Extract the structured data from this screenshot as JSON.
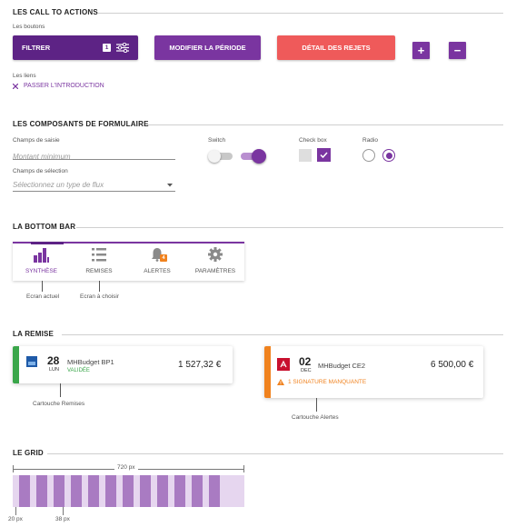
{
  "sections": {
    "cta": "LES CALL TO ACTIONS",
    "form": "LES COMPOSANTS DE FORMULAIRE",
    "bottom_bar": "LA BOTTOM BAR",
    "remise": "LA REMISE",
    "grid": "LE GRID"
  },
  "cta": {
    "buttons_label": "Les boutons",
    "filter_label": "FILTRER",
    "filter_count": "1",
    "modify_label": "MODIFIER LA PÉRIODE",
    "rejects_label": "DÉTAIL DES REJETS",
    "plus_label": "+",
    "minus_label": "−",
    "links_label": "Les liens",
    "skip_link": "PASSER L'INTRODUCTION"
  },
  "form": {
    "input_label": "Champs de saisie",
    "input_placeholder": "Montant minimum",
    "select_label": "Champs de sélection",
    "select_placeholder": "Sélectionnez un type de flux",
    "switch_label": "Switch",
    "checkbox_label": "Check box",
    "radio_label": "Radio"
  },
  "bottom_bar": {
    "items": [
      {
        "label": "SYNTHÈSE",
        "icon": "bar-chart-icon",
        "active": true
      },
      {
        "label": "REMISES",
        "icon": "list-icon",
        "active": false
      },
      {
        "label": "ALERTES",
        "icon": "bell-icon",
        "active": false,
        "badge": "4"
      },
      {
        "label": "PARAMÈTRES",
        "icon": "gear-icon",
        "active": false
      }
    ],
    "annotation_current": "Ecran actuel",
    "annotation_choose": "Ecran à choisir"
  },
  "remise": {
    "card1": {
      "day": "28",
      "month": "LUN",
      "name": "MHBudget BP1",
      "status": "VALIDÉE",
      "amount": "1 527,32 €",
      "accent": "#3aa64a"
    },
    "card2": {
      "day": "02",
      "month": "DEC",
      "name": "MHBudget CE2",
      "warning": "1 SIGNATURE MANQUANTE",
      "amount": "6 500,00 €",
      "accent": "#f0821e"
    },
    "annotation1": "Cartouche Remises",
    "annotation2": "Cartouche Alertes"
  },
  "grid": {
    "total_width": "720 px",
    "margin": "20 px",
    "column": "38 px"
  },
  "colors": {
    "primary": "#7a35a0",
    "primary_dark": "#5d2385",
    "danger": "#ef5a5a",
    "success": "#3aa64a",
    "warning": "#f0821e"
  }
}
